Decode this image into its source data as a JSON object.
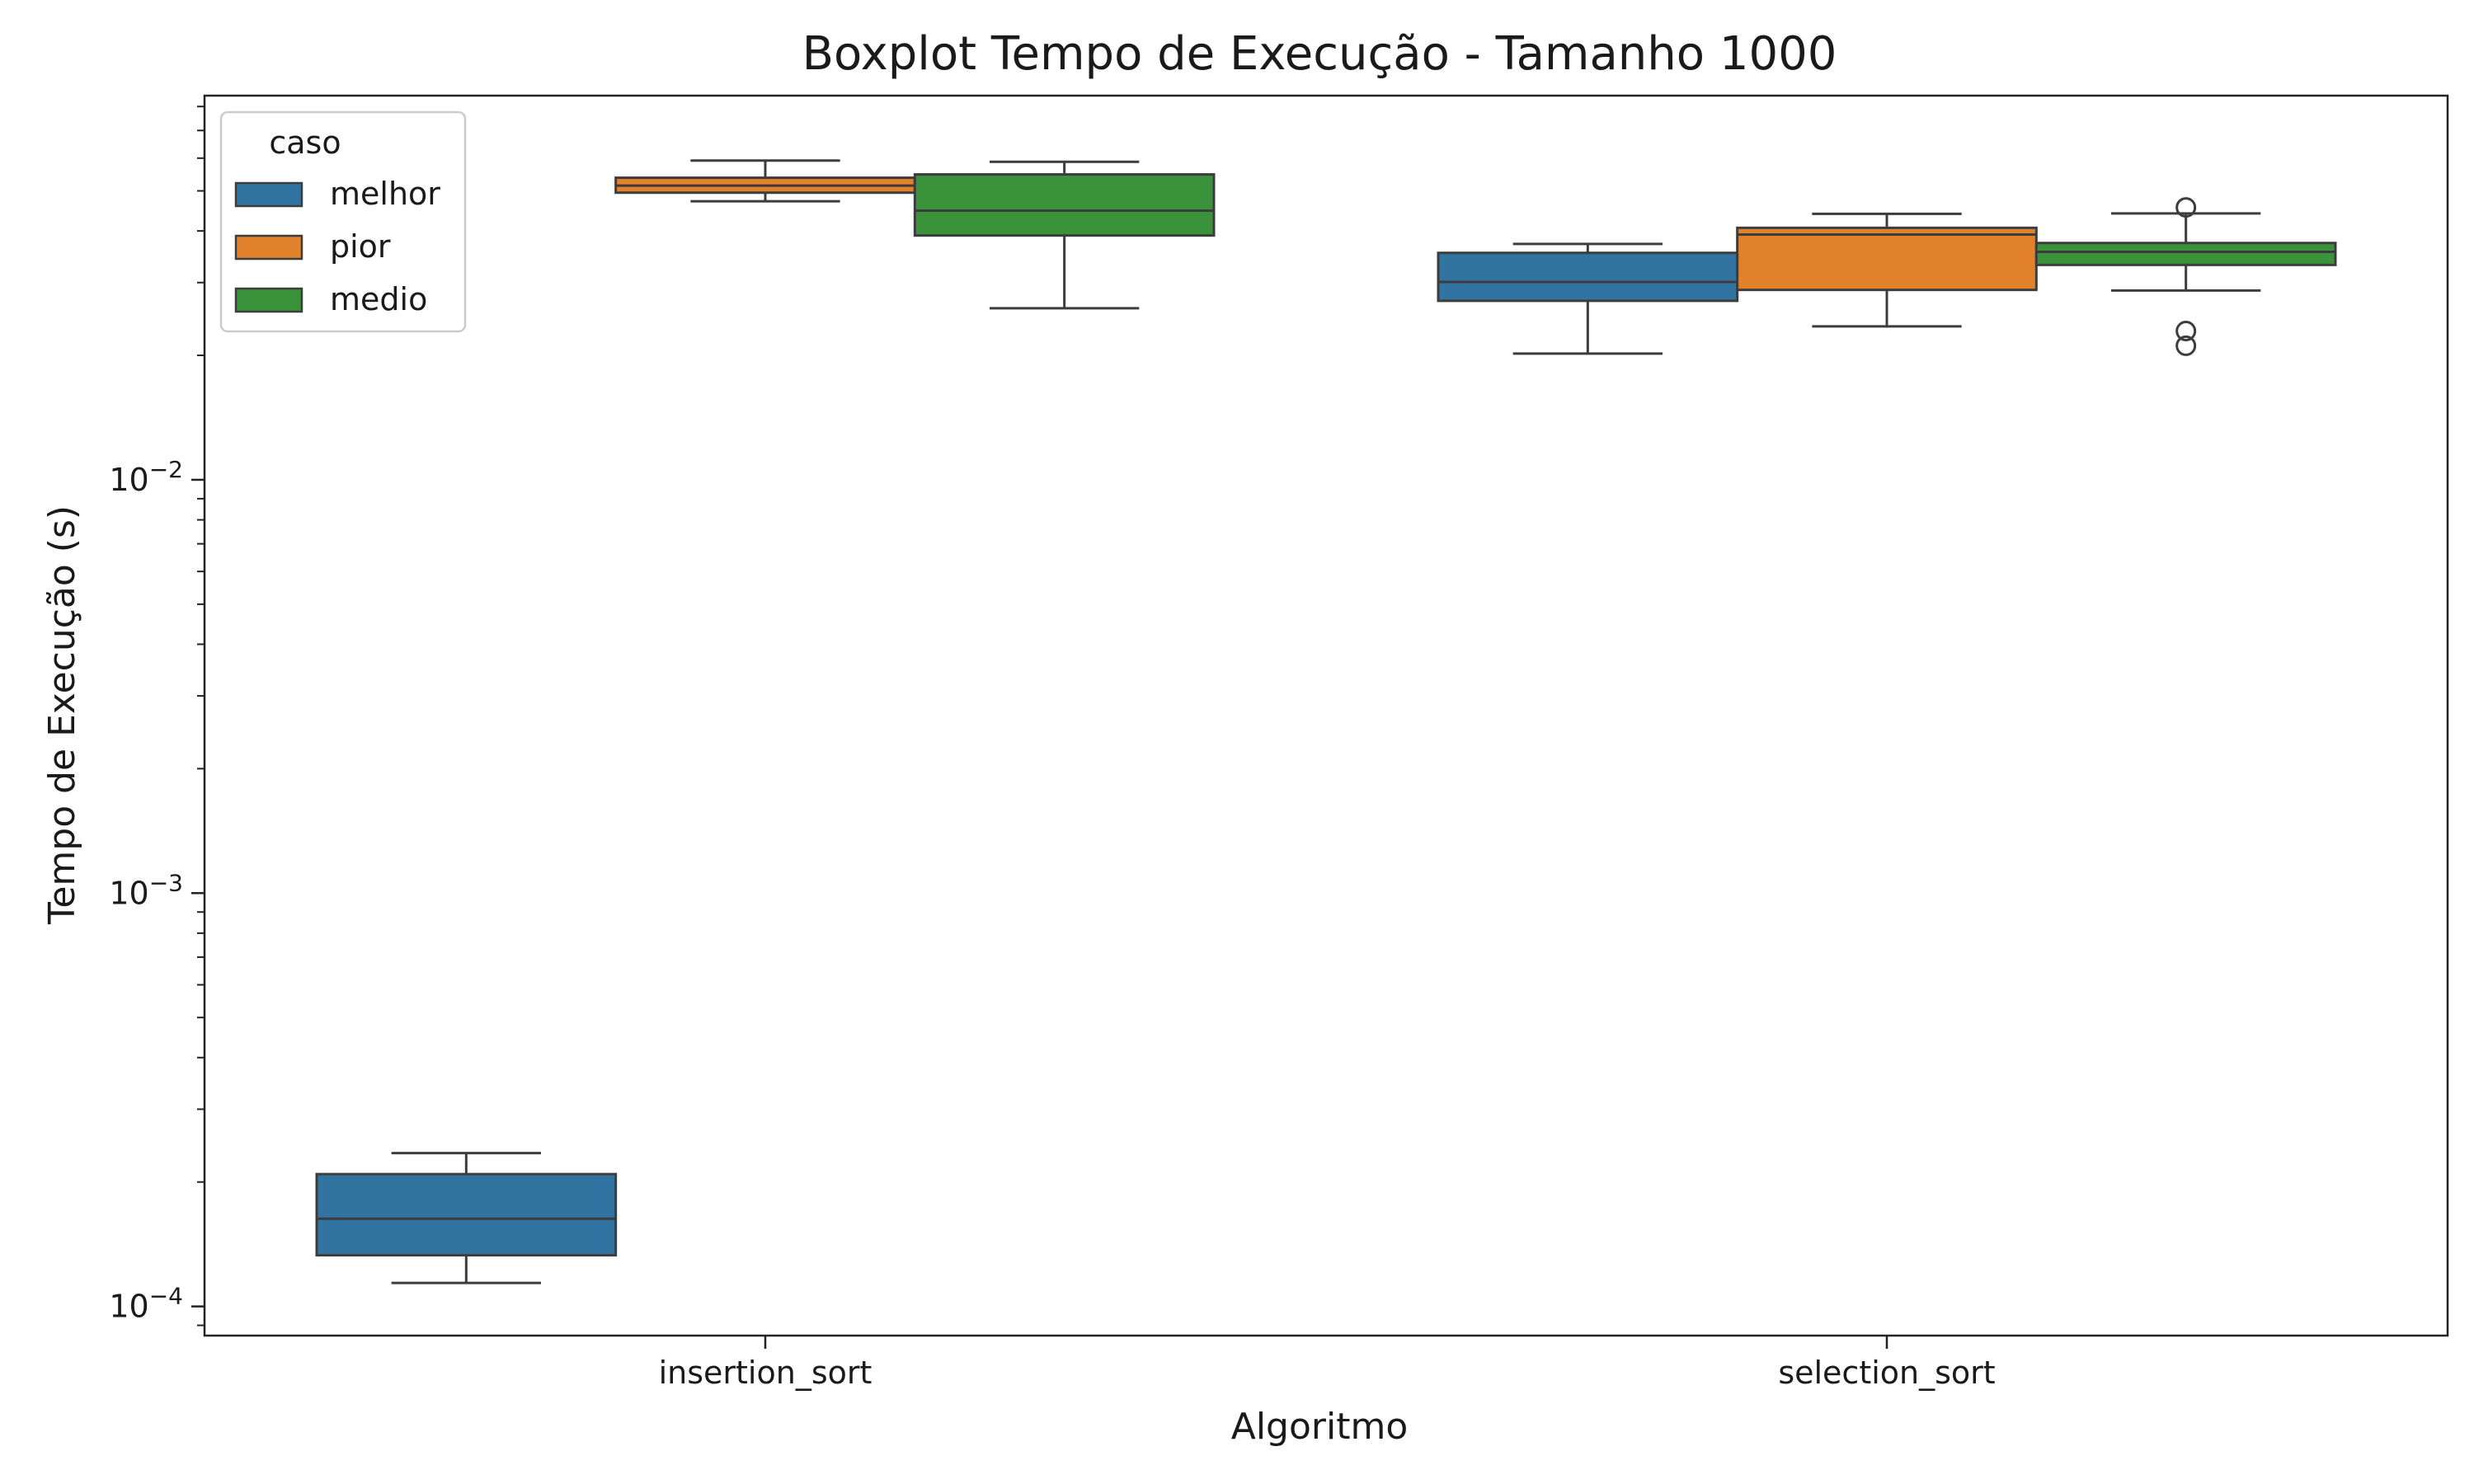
{
  "chart_data": {
    "type": "boxplot",
    "title": "Boxplot Tempo de Execução - Tamanho 1000",
    "xlabel": "Algoritmo",
    "ylabel": "Tempo de Execução (s)",
    "yscale": "log",
    "ylim": [
      8.5e-05,
      0.085
    ],
    "yticks": [
      {
        "value": 0.01,
        "base": "10",
        "exp": "−2"
      },
      {
        "value": 0.001,
        "base": "10",
        "exp": "−3"
      },
      {
        "value": 0.0001,
        "base": "10",
        "exp": "−4"
      }
    ],
    "categories": [
      "insertion_sort",
      "selection_sort"
    ],
    "legend": {
      "title": "caso",
      "position": "top-left"
    },
    "series": [
      {
        "name": "melhor",
        "color": "#3274a1",
        "boxes": [
          {
            "whislo": 0.000114,
            "q1": 0.000133,
            "med": 0.000163,
            "q3": 0.000209,
            "whishi": 0.000235,
            "fliers": []
          },
          {
            "whislo": 0.0202,
            "q1": 0.0271,
            "med": 0.0301,
            "q3": 0.0354,
            "whishi": 0.0372,
            "fliers": []
          }
        ]
      },
      {
        "name": "pior",
        "color": "#e1812c",
        "boxes": [
          {
            "whislo": 0.0472,
            "q1": 0.0495,
            "med": 0.0515,
            "q3": 0.0538,
            "whishi": 0.0592,
            "fliers": []
          },
          {
            "whislo": 0.0235,
            "q1": 0.0288,
            "med": 0.0392,
            "q3": 0.0407,
            "whishi": 0.044,
            "fliers": []
          }
        ]
      },
      {
        "name": "medio",
        "color": "#3a923a",
        "boxes": [
          {
            "whislo": 0.026,
            "q1": 0.039,
            "med": 0.0448,
            "q3": 0.0548,
            "whishi": 0.0588,
            "fliers": []
          },
          {
            "whislo": 0.0287,
            "q1": 0.0331,
            "med": 0.0356,
            "q3": 0.0374,
            "whishi": 0.0441,
            "fliers": [
              0.0456,
              0.0229,
              0.0211
            ]
          }
        ]
      }
    ]
  }
}
